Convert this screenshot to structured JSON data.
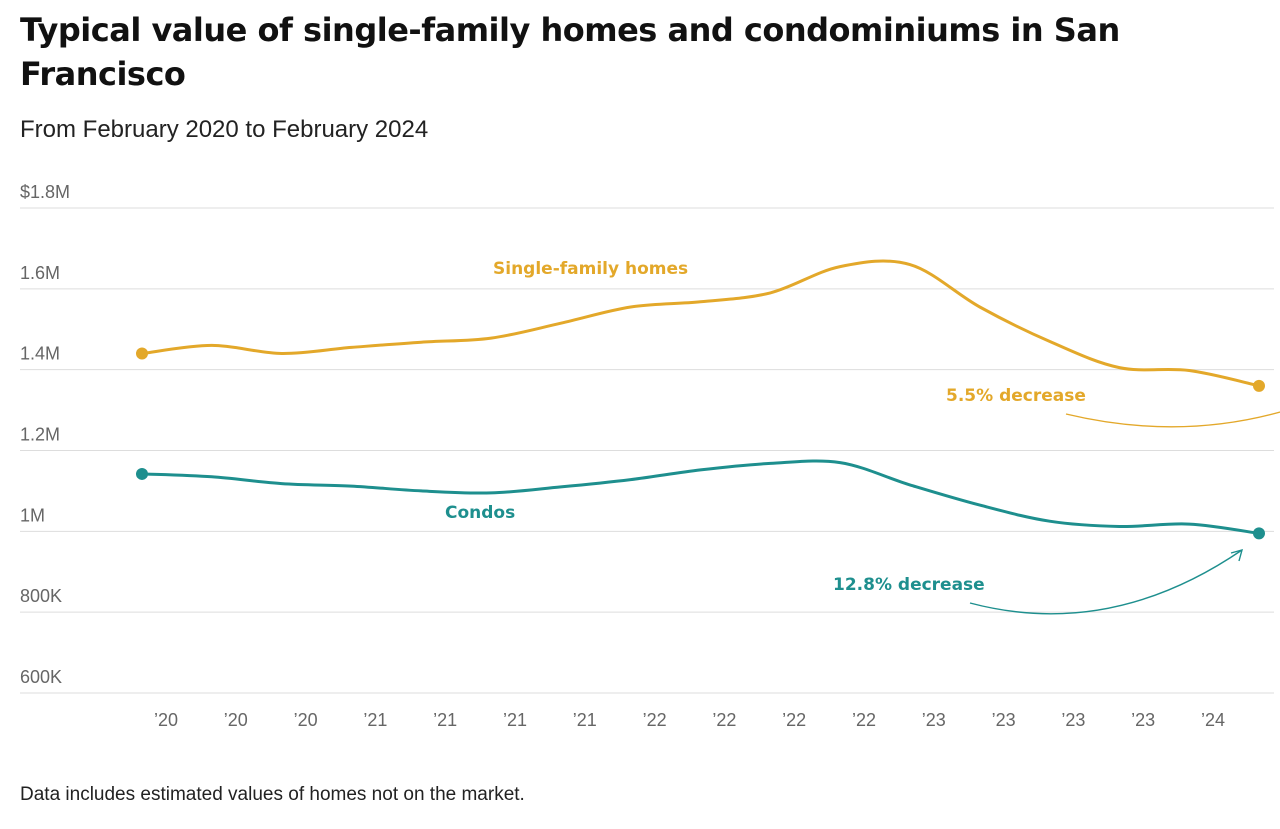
{
  "chart_data": {
    "type": "line",
    "title": "Typical value of single-family homes and condominiums in San Francisco",
    "subtitle": "From February 2020 to February 2024",
    "note": "Data includes estimated values of homes not on the market.",
    "ylim": [
      600000,
      1800000
    ],
    "y_ticks": [
      {
        "value": 1800000,
        "label": "$1.8M"
      },
      {
        "value": 1600000,
        "label": "1.6M"
      },
      {
        "value": 1400000,
        "label": "1.4M"
      },
      {
        "value": 1200000,
        "label": "1.2M"
      },
      {
        "value": 1000000,
        "label": "1M"
      },
      {
        "value": 800000,
        "label": "800K"
      },
      {
        "value": 600000,
        "label": "600K"
      }
    ],
    "x_tick_labels": [
      "’20",
      "’20",
      "’20",
      "’21",
      "’21",
      "’21",
      "’21",
      "’22",
      "’22",
      "’22",
      "’22",
      "’23",
      "’23",
      "’23",
      "’23",
      "’24"
    ],
    "x": [
      "2020-02",
      "2020-05",
      "2020-08",
      "2020-11",
      "2021-02",
      "2021-05",
      "2021-08",
      "2021-11",
      "2022-02",
      "2022-05",
      "2022-08",
      "2022-11",
      "2023-02",
      "2023-05",
      "2023-08",
      "2023-11",
      "2024-02"
    ],
    "grid": true,
    "series": [
      {
        "name": "Single-family homes",
        "color": "#e3a82a",
        "values": [
          1440000,
          1460000,
          1440000,
          1455000,
          1468000,
          1478000,
          1515000,
          1555000,
          1568000,
          1590000,
          1655000,
          1660000,
          1555000,
          1470000,
          1405000,
          1398000,
          1360000
        ],
        "annotation": "5.5% decrease"
      },
      {
        "name": "Condos",
        "color": "#1e8f8e",
        "values": [
          1142000,
          1135000,
          1118000,
          1112000,
          1100000,
          1095000,
          1110000,
          1128000,
          1152000,
          1168000,
          1170000,
          1115000,
          1065000,
          1025000,
          1012000,
          1018000,
          995000
        ],
        "annotation": "12.8% decrease"
      }
    ]
  }
}
